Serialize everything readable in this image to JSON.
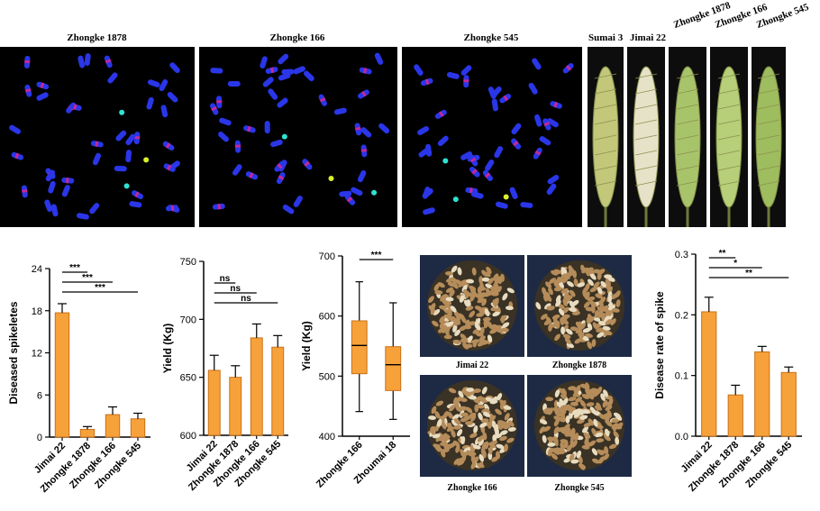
{
  "microscopy": {
    "titles": [
      "Zhongke 1878",
      "Zhongke 166",
      "Zhongke 545"
    ]
  },
  "spikes": {
    "labels": [
      "Sumai 3",
      "Jimai 22",
      "Zhongke 1878",
      "Zhongke 166",
      "Zhongke 545"
    ]
  },
  "grains": {
    "labels": [
      "Jimai 22",
      "Zhongke 1878",
      "Zhongke 166",
      "Zhongke 545"
    ]
  },
  "colors": {
    "bar_fill": "#f7a13a",
    "bar_stroke": "#c8711a",
    "nucleus": "#2a36e8",
    "background_micro": "#000000"
  },
  "chart_data": [
    {
      "type": "bar",
      "categories": [
        "Jimai 22",
        "Zhongke 1878",
        "Zhongke 166",
        "Zhongke 545"
      ],
      "values": [
        17.7,
        1.1,
        3.2,
        2.6
      ],
      "errors": [
        1.3,
        0.4,
        1.1,
        0.8
      ],
      "ylabel": "Diseased spikeletes",
      "ylim": [
        0,
        24
      ],
      "yticks": [
        0,
        6,
        12,
        18,
        24
      ],
      "significance": [
        {
          "from": 0,
          "to": 1,
          "label": "***"
        },
        {
          "from": 0,
          "to": 2,
          "label": "***"
        },
        {
          "from": 0,
          "to": 3,
          "label": "***"
        }
      ]
    },
    {
      "type": "bar",
      "categories": [
        "Jimai 22",
        "Zhongke 1878",
        "Zhongke 166",
        "Zhongke 545"
      ],
      "values": [
        656,
        650,
        684,
        676
      ],
      "errors": [
        13,
        10,
        12,
        10
      ],
      "ylabel": "Yield (Kg)",
      "ylim": [
        600,
        750
      ],
      "yticks": [
        600,
        650,
        700,
        750
      ],
      "significance": [
        {
          "from": 0,
          "to": 1,
          "label": "ns"
        },
        {
          "from": 0,
          "to": 2,
          "label": "ns"
        },
        {
          "from": 0,
          "to": 3,
          "label": "ns"
        }
      ]
    },
    {
      "type": "box",
      "categories": [
        "Zhongke 166",
        "Zhoumai 18"
      ],
      "boxes": [
        {
          "min": 441,
          "q1": 504,
          "median": 551,
          "q3": 592,
          "max": 657
        },
        {
          "min": 428,
          "q1": 476,
          "median": 519,
          "q3": 549,
          "max": 622
        }
      ],
      "ylabel": "Yield (Kg)",
      "ylim": [
        400,
        700
      ],
      "yticks": [
        400,
        500,
        600,
        700
      ],
      "significance": [
        {
          "from": 0,
          "to": 1,
          "label": "***"
        }
      ]
    },
    {
      "type": "bar",
      "categories": [
        "Jimai 22",
        "Zhongke 1878",
        "Zhongke 166",
        "Zhongke 545"
      ],
      "values": [
        0.205,
        0.068,
        0.139,
        0.105
      ],
      "errors": [
        0.024,
        0.016,
        0.009,
        0.009
      ],
      "ylabel": "Disease rate of spike",
      "ylim": [
        0,
        0.3
      ],
      "yticks": [
        0.0,
        0.1,
        0.2,
        0.3
      ],
      "ytick_labels": [
        "0.0",
        "0.1",
        "0.2",
        "0.3"
      ],
      "significance": [
        {
          "from": 0,
          "to": 1,
          "label": "**"
        },
        {
          "from": 0,
          "to": 2,
          "label": "*"
        },
        {
          "from": 0,
          "to": 3,
          "label": "**"
        }
      ]
    }
  ]
}
